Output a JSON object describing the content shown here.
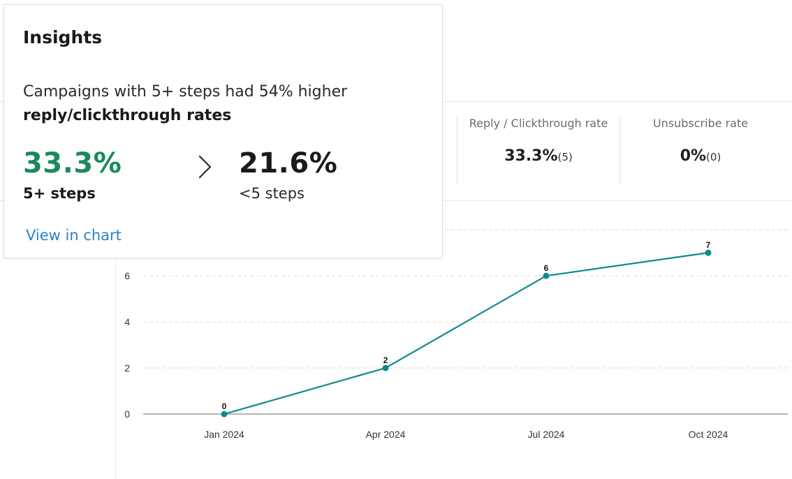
{
  "insights": {
    "title": "Insights",
    "description_line1": "Campaigns with 5+ steps had 54% higher",
    "description_line2": "reply/clickthrough rates",
    "left_value": "33.3%",
    "left_label": "5+ steps",
    "comparator_icon": "chevron-right-icon",
    "right_value": "21.6%",
    "right_label": "<5 steps",
    "link_label": "View in chart",
    "accent_color": "#1a8a5a",
    "link_color": "#2a82c8"
  },
  "stats": [
    {
      "label": "Reply / Clickthrough rate",
      "value": "33.3%",
      "count": "(5)"
    },
    {
      "label": "Unsubscribe rate",
      "value": "0%",
      "count": "(0)"
    }
  ],
  "chart_data": {
    "type": "line",
    "categories": [
      "Jan 2024",
      "Apr 2024",
      "Jul 2024",
      "Oct 2024"
    ],
    "series": [
      {
        "values": [
          0,
          2,
          6,
          7
        ],
        "color": "#0f8a8a"
      }
    ],
    "data_labels": [
      "0",
      "2",
      "6",
      "7"
    ],
    "y_ticks": [
      "0",
      "2",
      "4",
      "6"
    ],
    "ylim": [
      0,
      8
    ],
    "grid": true,
    "title": "",
    "xlabel": "",
    "ylabel": ""
  }
}
